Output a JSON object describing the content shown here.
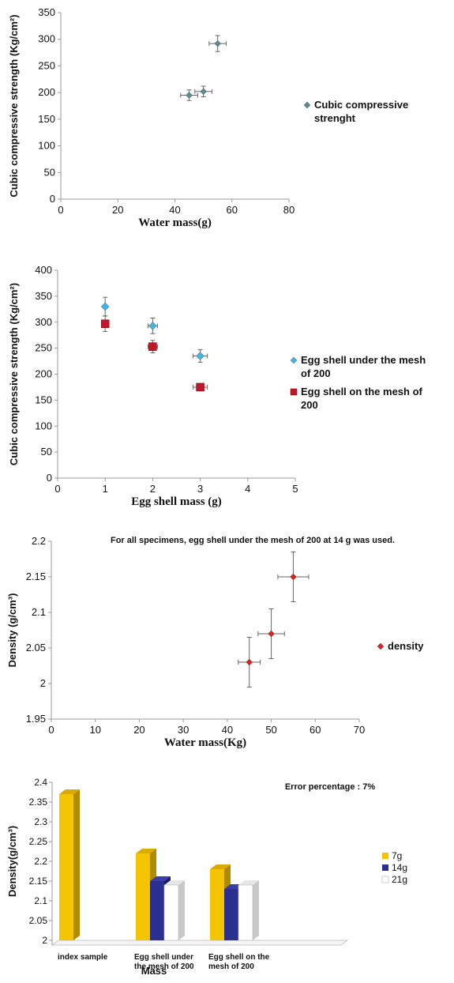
{
  "chart_data": [
    {
      "type": "scatter",
      "title": "",
      "xlabel": "Water mass(g)",
      "ylabel": "Cubic compressive strength (Kg/cm²)",
      "xlim": [
        0,
        80
      ],
      "ylim": [
        0,
        350
      ],
      "x_ticks": [
        "0",
        "20",
        "40",
        "60",
        "80"
      ],
      "y_ticks": [
        "0",
        "50",
        "100",
        "150",
        "200",
        "250",
        "300",
        "350"
      ],
      "grid": false,
      "legend_position": "right",
      "series": [
        {
          "name": "Cubic compressive strenght",
          "legend_lines": [
            "Cubic compressive",
            "strenght"
          ],
          "color": "#5a8a92",
          "marker": "diamond",
          "points": [
            {
              "x": 45,
              "y": 195,
              "xerr": 3,
              "yerr": 10
            },
            {
              "x": 50,
              "y": 202,
              "xerr": 3,
              "yerr": 10
            },
            {
              "x": 55,
              "y": 292,
              "xerr": 3,
              "yerr": 15
            }
          ]
        }
      ]
    },
    {
      "type": "scatter",
      "title": "",
      "xlabel": "Egg shell mass (g)",
      "ylabel": "Cubic compressive strength  (Kg/cm²)",
      "xlim": [
        0,
        5
      ],
      "ylim": [
        0,
        400
      ],
      "x_ticks": [
        "0",
        "1",
        "2",
        "3",
        "4",
        "5"
      ],
      "y_ticks": [
        "0",
        "50",
        "100",
        "150",
        "200",
        "250",
        "300",
        "350",
        "400"
      ],
      "grid": false,
      "legend_position": "right",
      "series": [
        {
          "name": "Egg shell under the mesh of 200",
          "legend_lines": [
            "Egg shell under the mesh",
            "of 200"
          ],
          "color": "#3db6e8",
          "marker": "diamond",
          "points": [
            {
              "x": 1,
              "y": 330,
              "xerr": 0,
              "yerr": 18
            },
            {
              "x": 2,
              "y": 293,
              "xerr": 0.1,
              "yerr": 15
            },
            {
              "x": 3,
              "y": 235,
              "xerr": 0.15,
              "yerr": 12
            }
          ]
        },
        {
          "name": "Egg shell on the mesh of 200",
          "legend_lines": [
            "Egg shell on the mesh of",
            "200"
          ],
          "color": "#c0152a",
          "marker": "square",
          "points": [
            {
              "x": 1,
              "y": 297,
              "xerr": 0,
              "yerr": 15
            },
            {
              "x": 2,
              "y": 253,
              "xerr": 0.1,
              "yerr": 12
            },
            {
              "x": 3,
              "y": 175,
              "xerr": 0.15,
              "yerr": 6
            }
          ]
        }
      ]
    },
    {
      "type": "scatter",
      "title": "",
      "annotation": "For all specimens, egg shell under the mesh of 200 at 14 g was used.",
      "xlabel": "Water mass(Kg)",
      "ylabel": "Density (g/cm³)",
      "xlim": [
        0,
        70
      ],
      "ylim": [
        1.95,
        2.2
      ],
      "x_ticks": [
        "0",
        "10",
        "20",
        "30",
        "40",
        "50",
        "60",
        "70"
      ],
      "y_ticks": [
        "1.95",
        "2",
        "2.05",
        "2.1",
        "2.15",
        "2.2"
      ],
      "grid": false,
      "legend_position": "right",
      "series": [
        {
          "name": "density",
          "legend_lines": [
            "density"
          ],
          "color": "#e0201d",
          "marker": "diamond",
          "points": [
            {
              "x": 45,
              "y": 2.03,
              "xerr": 2.5,
              "yerr": 0.035
            },
            {
              "x": 50,
              "y": 2.07,
              "xerr": 3,
              "yerr": 0.035
            },
            {
              "x": 55,
              "y": 2.15,
              "xerr": 3.5,
              "yerr": 0.035
            }
          ]
        }
      ]
    },
    {
      "type": "bar",
      "title": "",
      "annotation": "Error percentage : 7%",
      "xlabel": "Mass",
      "ylabel": "Density(g/cm³)",
      "ylim": [
        2,
        2.4
      ],
      "y_ticks": [
        "2",
        "2.05",
        "2.1",
        "2.15",
        "2.2",
        "2.25",
        "2.3",
        "2.35",
        "2.4"
      ],
      "categories": [
        [
          "index sample"
        ],
        [
          "Egg shell under",
          "the mesh of 200"
        ],
        [
          "Egg shell on the",
          "mesh of 200"
        ]
      ],
      "grid": false,
      "legend_position": "right",
      "series": [
        {
          "name": "7g",
          "color": "#f5c400",
          "values": [
            2.37,
            2.22,
            2.18
          ]
        },
        {
          "name": "14g",
          "color": "#2b2f8f",
          "values": [
            null,
            2.15,
            2.13
          ]
        },
        {
          "name": "21g",
          "color": "#ffffff",
          "values": [
            null,
            2.14,
            2.14
          ]
        }
      ]
    }
  ]
}
